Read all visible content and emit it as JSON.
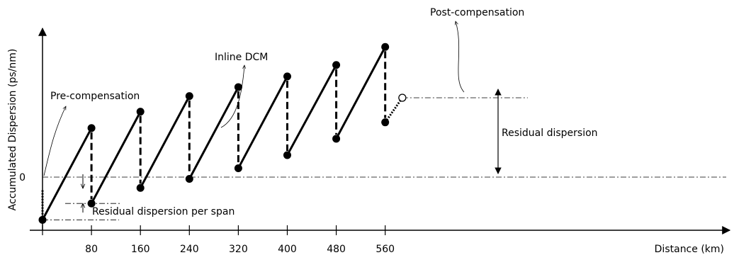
{
  "chart_data": {
    "type": "line",
    "title": "",
    "xlabel": "Distance (km)",
    "ylabel": "Accumulated Dispersion (ps/nm)",
    "x_ticks": [
      80,
      160,
      240,
      320,
      400,
      480,
      560
    ],
    "y_ticks": [
      {
        "value": 0,
        "label": "0"
      }
    ],
    "xlim": [
      0,
      1130
    ],
    "ylim": [
      -8.5,
      21.5
    ],
    "grid": false,
    "legend": "none",
    "segments": [
      {
        "name": "",
        "x": [
          0,
          80
        ],
        "y": [
          -3.6,
          7.6
        ]
      },
      {
        "name": "",
        "x": [
          80,
          160
        ],
        "y": [
          -1.6,
          9.6
        ]
      },
      {
        "name": "",
        "x": [
          160,
          240
        ],
        "y": [
          0.3,
          11.5
        ]
      },
      {
        "name": "",
        "x": [
          240,
          320
        ],
        "y": [
          1.4,
          12.6
        ]
      },
      {
        "name": "",
        "x": [
          320,
          400
        ],
        "y": [
          2.7,
          13.9
        ]
      },
      {
        "name": "",
        "x": [
          400,
          480
        ],
        "y": [
          4.3,
          15.3
        ]
      },
      {
        "name": "",
        "x": [
          480,
          560
        ],
        "y": [
          6.3,
          17.5
        ]
      }
    ],
    "inline_dcm_drops": [
      {
        "x": 80,
        "from": 7.6,
        "to": -1.6
      },
      {
        "x": 160,
        "from": 9.6,
        "to": 0.3
      },
      {
        "x": 240,
        "from": 11.5,
        "to": 1.4
      },
      {
        "x": 320,
        "from": 12.6,
        "to": 2.7
      },
      {
        "x": 400,
        "from": 13.9,
        "to": 4.3
      },
      {
        "x": 480,
        "from": 15.3,
        "to": 6.3
      },
      {
        "x": 560,
        "from": 17.5,
        "to": 8.3
      }
    ],
    "pre_compensation": {
      "x": 0,
      "from": 0,
      "to": -3.6
    },
    "post_compensation": {
      "x": [
        560,
        588
      ],
      "y": [
        8.3,
        11.3
      ]
    },
    "residual_dispersion_level": 11.3,
    "residual_per_span_levels": [
      -1.6,
      -3.6
    ]
  },
  "annotations": {
    "pre_compensation": "Pre-compensation",
    "inline_dcm": "Inline DCM",
    "post_compensation": "Post-compensation",
    "residual_dispersion": "Residual dispersion",
    "residual_per_span": "Residual dispersion per span"
  },
  "colors": {
    "ink": "#000000",
    "background": "#ffffff"
  }
}
